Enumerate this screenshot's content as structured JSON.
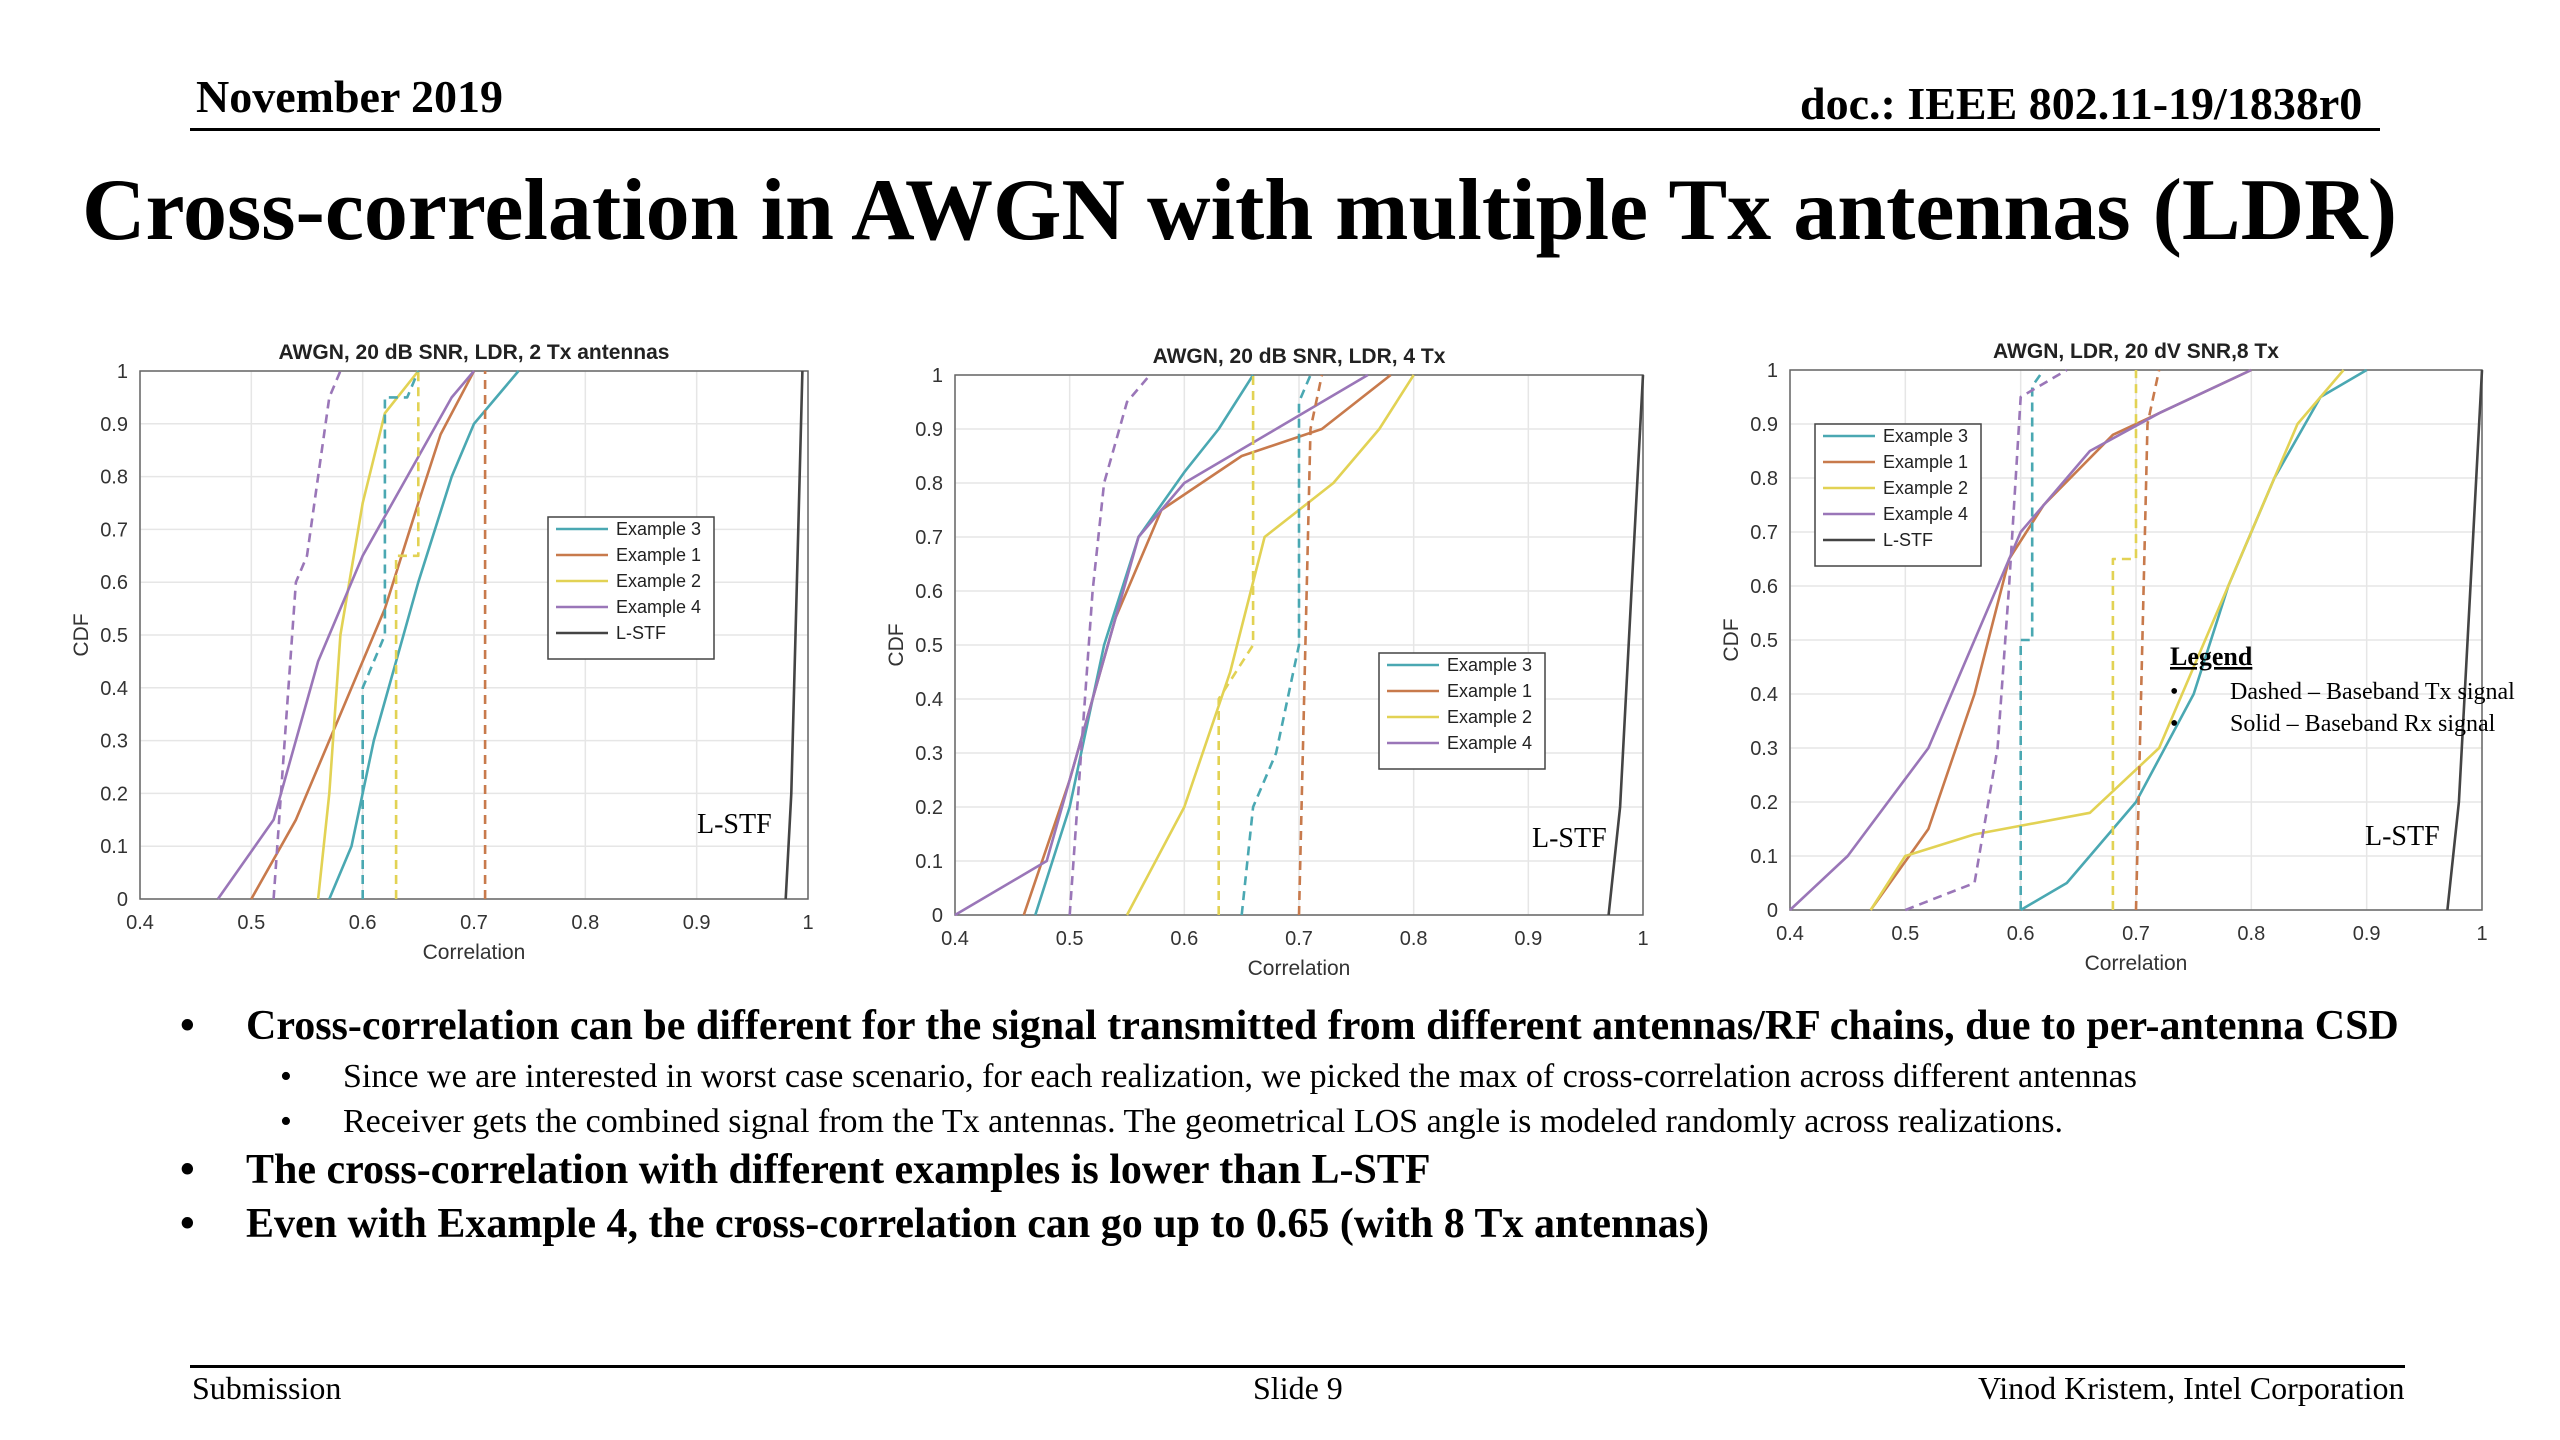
{
  "header": {
    "date": "November 2019",
    "doc": "doc.: IEEE 802.11-19/1838r0"
  },
  "title": "Cross-correlation in AWGN with multiple Tx antennas (LDR)",
  "colors": {
    "example3": "#4aa8b2",
    "example1": "#c87a4c",
    "example2": "#e2d254",
    "example4": "#9a76b8",
    "lstf": "#444444"
  },
  "chart_data": [
    {
      "type": "line",
      "title": "AWGN, 20 dB SNR, LDR, 2 Tx antennas",
      "xlabel": "Correlation",
      "ylabel": "CDF",
      "xlim": [
        0.4,
        1
      ],
      "ylim": [
        0,
        1
      ],
      "xticks": [
        "0.4",
        "0.5",
        "0.6",
        "0.7",
        "0.8",
        "0.9",
        "1"
      ],
      "yticks": [
        "0",
        "0.1",
        "0.2",
        "0.3",
        "0.4",
        "0.5",
        "0.6",
        "0.7",
        "0.8",
        "0.9",
        "1"
      ],
      "grid": true,
      "legend": [
        "Example 3",
        "Example 1",
        "Example 2",
        "Example 4",
        "L-STF"
      ],
      "legend_position": "center-right",
      "annotation": "L-STF",
      "series": [
        {
          "name": "Example 3",
          "style": "solid",
          "points": [
            [
              0.57,
              0
            ],
            [
              0.59,
              0.1
            ],
            [
              0.61,
              0.3
            ],
            [
              0.63,
              0.45
            ],
            [
              0.65,
              0.6
            ],
            [
              0.68,
              0.8
            ],
            [
              0.7,
              0.9
            ],
            [
              0.72,
              0.95
            ],
            [
              0.74,
              1
            ]
          ]
        },
        {
          "name": "Example 1",
          "style": "solid",
          "points": [
            [
              0.5,
              0
            ],
            [
              0.54,
              0.15
            ],
            [
              0.58,
              0.35
            ],
            [
              0.62,
              0.55
            ],
            [
              0.65,
              0.75
            ],
            [
              0.67,
              0.88
            ],
            [
              0.7,
              1
            ]
          ]
        },
        {
          "name": "Example 2",
          "style": "solid",
          "points": [
            [
              0.56,
              0
            ],
            [
              0.57,
              0.2
            ],
            [
              0.58,
              0.5
            ],
            [
              0.6,
              0.75
            ],
            [
              0.62,
              0.92
            ],
            [
              0.65,
              1
            ]
          ]
        },
        {
          "name": "Example 4",
          "style": "solid",
          "points": [
            [
              0.47,
              0
            ],
            [
              0.52,
              0.15
            ],
            [
              0.56,
              0.45
            ],
            [
              0.6,
              0.65
            ],
            [
              0.64,
              0.8
            ],
            [
              0.68,
              0.95
            ],
            [
              0.7,
              1
            ]
          ]
        },
        {
          "name": "L-STF",
          "style": "solid",
          "points": [
            [
              0.98,
              0
            ],
            [
              0.985,
              0.2
            ],
            [
              0.99,
              0.6
            ],
            [
              0.995,
              1
            ]
          ]
        },
        {
          "name": "Example 3",
          "style": "dashed",
          "points": [
            [
              0.6,
              0
            ],
            [
              0.6,
              0.4
            ],
            [
              0.62,
              0.5
            ],
            [
              0.62,
              0.95
            ],
            [
              0.64,
              0.95
            ],
            [
              0.65,
              1
            ]
          ]
        },
        {
          "name": "Example 1",
          "style": "dashed",
          "points": [
            [
              0.71,
              0
            ],
            [
              0.71,
              0.8
            ],
            [
              0.71,
              1
            ]
          ]
        },
        {
          "name": "Example 2",
          "style": "dashed",
          "points": [
            [
              0.63,
              0
            ],
            [
              0.63,
              0.65
            ],
            [
              0.65,
              0.65
            ],
            [
              0.65,
              1
            ]
          ]
        },
        {
          "name": "Example 4",
          "style": "dashed",
          "points": [
            [
              0.52,
              0
            ],
            [
              0.53,
              0.3
            ],
            [
              0.54,
              0.6
            ],
            [
              0.55,
              0.65
            ],
            [
              0.56,
              0.8
            ],
            [
              0.57,
              0.95
            ],
            [
              0.58,
              1
            ]
          ]
        }
      ]
    },
    {
      "type": "line",
      "title": "AWGN, 20 dB SNR, LDR, 4 Tx",
      "xlabel": "Correlation",
      "ylabel": "CDF",
      "xlim": [
        0.4,
        1
      ],
      "ylim": [
        0,
        1
      ],
      "xticks": [
        "0.4",
        "0.5",
        "0.6",
        "0.7",
        "0.8",
        "0.9",
        "1"
      ],
      "yticks": [
        "0",
        "0.1",
        "0.2",
        "0.3",
        "0.4",
        "0.5",
        "0.6",
        "0.7",
        "0.8",
        "0.9",
        "1"
      ],
      "grid": true,
      "legend": [
        "Example 3",
        "Example 1",
        "Example 2",
        "Example 4"
      ],
      "legend_position": "center-right",
      "annotation": "L-STF",
      "series": [
        {
          "name": "Example 3",
          "style": "solid",
          "points": [
            [
              0.47,
              0
            ],
            [
              0.5,
              0.2
            ],
            [
              0.53,
              0.5
            ],
            [
              0.56,
              0.7
            ],
            [
              0.6,
              0.82
            ],
            [
              0.63,
              0.9
            ],
            [
              0.66,
              1
            ]
          ]
        },
        {
          "name": "Example 1",
          "style": "solid",
          "points": [
            [
              0.46,
              0
            ],
            [
              0.5,
              0.25
            ],
            [
              0.54,
              0.55
            ],
            [
              0.58,
              0.75
            ],
            [
              0.65,
              0.85
            ],
            [
              0.72,
              0.9
            ],
            [
              0.78,
              1
            ]
          ]
        },
        {
          "name": "Example 2",
          "style": "solid",
          "points": [
            [
              0.55,
              0
            ],
            [
              0.6,
              0.2
            ],
            [
              0.64,
              0.45
            ],
            [
              0.67,
              0.7
            ],
            [
              0.73,
              0.8
            ],
            [
              0.77,
              0.9
            ],
            [
              0.8,
              1
            ]
          ]
        },
        {
          "name": "Example 4",
          "style": "solid",
          "points": [
            [
              0.4,
              0
            ],
            [
              0.48,
              0.1
            ],
            [
              0.52,
              0.4
            ],
            [
              0.56,
              0.7
            ],
            [
              0.6,
              0.8
            ],
            [
              0.68,
              0.9
            ],
            [
              0.76,
              1
            ]
          ]
        },
        {
          "name": "L-STF",
          "style": "solid",
          "points": [
            [
              0.97,
              0
            ],
            [
              0.98,
              0.2
            ],
            [
              0.99,
              0.6
            ],
            [
              1.0,
              1
            ]
          ]
        },
        {
          "name": "Example 3",
          "style": "dashed",
          "points": [
            [
              0.65,
              0
            ],
            [
              0.66,
              0.2
            ],
            [
              0.68,
              0.3
            ],
            [
              0.7,
              0.5
            ],
            [
              0.7,
              0.95
            ],
            [
              0.71,
              1
            ]
          ]
        },
        {
          "name": "Example 1",
          "style": "dashed",
          "points": [
            [
              0.7,
              0
            ],
            [
              0.71,
              0.9
            ],
            [
              0.72,
              1
            ]
          ]
        },
        {
          "name": "Example 2",
          "style": "dashed",
          "points": [
            [
              0.63,
              0
            ],
            [
              0.63,
              0.4
            ],
            [
              0.66,
              0.5
            ],
            [
              0.66,
              1
            ]
          ]
        },
        {
          "name": "Example 4",
          "style": "dashed",
          "points": [
            [
              0.5,
              0
            ],
            [
              0.51,
              0.3
            ],
            [
              0.52,
              0.6
            ],
            [
              0.53,
              0.8
            ],
            [
              0.55,
              0.95
            ],
            [
              0.57,
              1
            ]
          ]
        }
      ]
    },
    {
      "type": "line",
      "title": "AWGN, LDR, 20 dV SNR,8 Tx",
      "xlabel": "Correlation",
      "ylabel": "CDF",
      "xlim": [
        0.4,
        1
      ],
      "ylim": [
        0,
        1
      ],
      "xticks": [
        "0.4",
        "0.5",
        "0.6",
        "0.7",
        "0.8",
        "0.9",
        "1"
      ],
      "yticks": [
        "0",
        "0.1",
        "0.2",
        "0.3",
        "0.4",
        "0.5",
        "0.6",
        "0.7",
        "0.8",
        "0.9",
        "1"
      ],
      "grid": true,
      "legend": [
        "Example 3",
        "Example 1",
        "Example 2",
        "Example 4",
        "L-STF"
      ],
      "legend_position": "top-left",
      "annotation": "L-STF",
      "note": {
        "heading": "Legend",
        "items": [
          "Dashed – Baseband Tx signal",
          "Solid – Baseband Rx signal"
        ]
      },
      "series": [
        {
          "name": "Example 3",
          "style": "solid",
          "points": [
            [
              0.6,
              0
            ],
            [
              0.64,
              0.05
            ],
            [
              0.7,
              0.2
            ],
            [
              0.75,
              0.4
            ],
            [
              0.78,
              0.6
            ],
            [
              0.82,
              0.8
            ],
            [
              0.86,
              0.95
            ],
            [
              0.9,
              1
            ]
          ]
        },
        {
          "name": "Example 1",
          "style": "solid",
          "points": [
            [
              0.47,
              0
            ],
            [
              0.52,
              0.15
            ],
            [
              0.56,
              0.4
            ],
            [
              0.59,
              0.65
            ],
            [
              0.62,
              0.75
            ],
            [
              0.68,
              0.88
            ],
            [
              0.75,
              0.95
            ],
            [
              0.8,
              1
            ]
          ]
        },
        {
          "name": "Example 2",
          "style": "solid",
          "points": [
            [
              0.47,
              0
            ],
            [
              0.5,
              0.1
            ],
            [
              0.56,
              0.14
            ],
            [
              0.66,
              0.18
            ],
            [
              0.72,
              0.3
            ],
            [
              0.76,
              0.5
            ],
            [
              0.8,
              0.7
            ],
            [
              0.84,
              0.9
            ],
            [
              0.88,
              1
            ]
          ]
        },
        {
          "name": "Example 4",
          "style": "solid",
          "points": [
            [
              0.4,
              0
            ],
            [
              0.45,
              0.1
            ],
            [
              0.52,
              0.3
            ],
            [
              0.57,
              0.55
            ],
            [
              0.6,
              0.7
            ],
            [
              0.66,
              0.85
            ],
            [
              0.72,
              0.92
            ],
            [
              0.8,
              1
            ]
          ]
        },
        {
          "name": "L-STF",
          "style": "solid",
          "points": [
            [
              0.97,
              0
            ],
            [
              0.98,
              0.2
            ],
            [
              0.99,
              0.6
            ],
            [
              1.0,
              1
            ]
          ]
        },
        {
          "name": "Example 3",
          "style": "dashed",
          "points": [
            [
              0.6,
              0
            ],
            [
              0.6,
              0.5
            ],
            [
              0.61,
              0.5
            ],
            [
              0.61,
              0.97
            ],
            [
              0.62,
              1
            ]
          ]
        },
        {
          "name": "Example 1",
          "style": "dashed",
          "points": [
            [
              0.7,
              0
            ],
            [
              0.71,
              0.9
            ],
            [
              0.72,
              1
            ]
          ]
        },
        {
          "name": "Example 2",
          "style": "dashed",
          "points": [
            [
              0.68,
              0
            ],
            [
              0.68,
              0.65
            ],
            [
              0.7,
              0.65
            ],
            [
              0.7,
              1
            ]
          ]
        },
        {
          "name": "Example 4",
          "style": "dashed",
          "points": [
            [
              0.5,
              0
            ],
            [
              0.56,
              0.05
            ],
            [
              0.58,
              0.3
            ],
            [
              0.59,
              0.6
            ],
            [
              0.6,
              0.95
            ],
            [
              0.64,
              1
            ]
          ]
        }
      ]
    }
  ],
  "bullets": [
    {
      "level": 1,
      "text": "Cross-correlation can be different for the signal transmitted from different antennas/RF chains, due to per-antenna CSD"
    },
    {
      "level": 2,
      "text": "Since we are interested in worst case scenario, for each realization, we picked the max of cross-correlation across different antennas"
    },
    {
      "level": 2,
      "text": "Receiver gets the combined signal from the Tx antennas. The geometrical LOS angle is modeled randomly across realizations."
    },
    {
      "level": 1,
      "text": "The cross-correlation with different examples is lower than L-STF"
    },
    {
      "level": 1,
      "text": "Even with Example 4, the cross-correlation can go up to 0.65 (with 8 Tx antennas)"
    }
  ],
  "footer": {
    "left": "Submission",
    "center": "Slide 9",
    "right": "Vinod Kristem, Intel Corporation"
  }
}
